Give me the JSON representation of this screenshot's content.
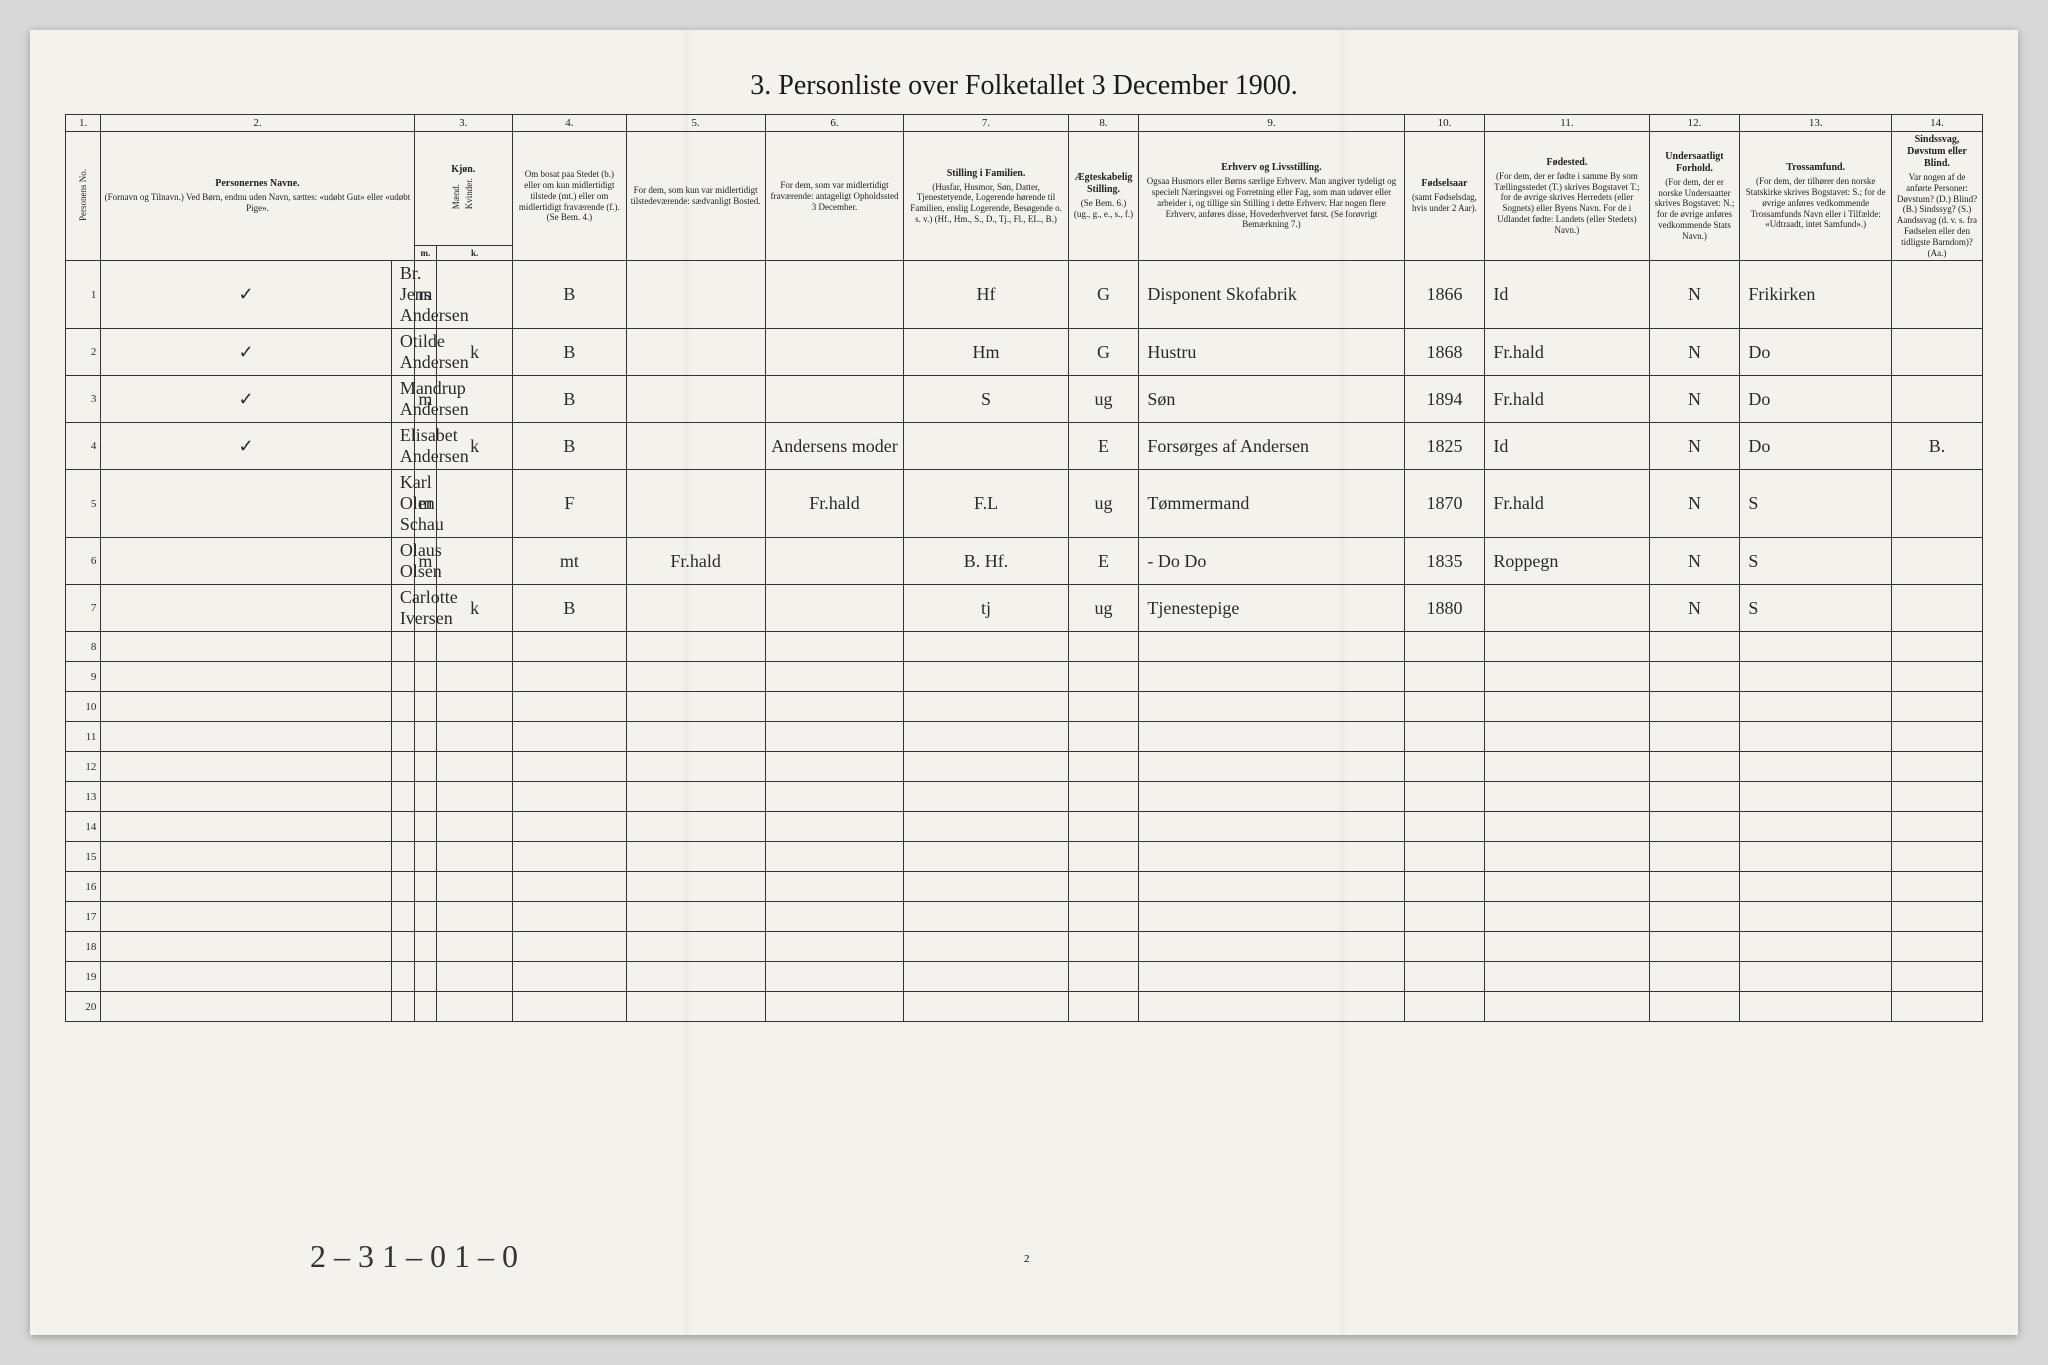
{
  "title": "3. Personliste over Folketallet 3 December 1900.",
  "page_number": "2",
  "footer_tally": "2 – 3   1 – 0   1 – 0",
  "col_numbers": [
    "1.",
    "2.",
    "3.",
    "4.",
    "5.",
    "6.",
    "7.",
    "8.",
    "9.",
    "10.",
    "11.",
    "12.",
    "13.",
    "14."
  ],
  "headers": {
    "c1": "Personens No.",
    "c2_main": "Personernes Navne.",
    "c2_sub": "(Fornavn og Tilnavn.)\nVed Børn, endnu uden Navn, sættes: «udøbt Gut» eller «udøbt Pige».",
    "c3_main": "Kjøn.",
    "c3_sub": "Mænd.",
    "c3_sub2": "Kvinder.",
    "c3_mk_m": "m.",
    "c3_mk_k": "k.",
    "c4": "Om bosat paa Stedet (b.) eller om kun midlertidigt tilstede (mt.) eller om midlertidigt fraværende (f.). (Se Bem. 4.)",
    "c5": "For dem, som kun var midlertidigt tilstedeværende:\nsædvanligt Bosted.",
    "c6": "For dem, som var midlertidigt fraværende:\nantageligt Opholdssted 3 December.",
    "c7_main": "Stilling i Familien.",
    "c7_sub": "(Husfar, Husmor, Søn, Datter, Tjenestetyende, Logerende hørende til Familien, enslig Logerende, Besøgende o. s. v.)\n(Hf., Hm., S., D., Tj., Fl., EL., B.)",
    "c8_main": "Ægteskabelig Stilling.",
    "c8_sub": "(Se Bem. 6.)\n(ug., g., e., s., f.)",
    "c9_main": "Erhverv og Livsstilling.",
    "c9_sub": "Ogsaa Husmors eller Børns særlige Erhverv. Man angiver tydeligt og specielt Næringsvei og Forretning eller Fag, som man udøver eller arbeider i, og tillige sin Stilling i dette Erhverv. Har nogen flere Erhverv, anføres disse, Hovederhvervet først.\n(Se forøvrigt Bemærkning 7.)",
    "c10_main": "Fødselsaar",
    "c10_sub": "(samt Fødselsdag, hvis under 2 Aar).",
    "c11_main": "Fødested.",
    "c11_sub": "(For dem, der er fødte i samme By som Tællingsstedet (T.) skrives Bogstavet T.; for de øvrige skrives Herredets (eller Sognets) eller Byens Navn. For de i Udlandet fødte: Landets (eller Stedets) Navn.)",
    "c12_main": "Undersaatligt Forhold.",
    "c12_sub": "(For dem, der er norske Undersaatter skrives Bogstavet: N.; for de øvrige anføres vedkommende Stats Navn.)",
    "c13_main": "Trossamfund.",
    "c13_sub": "(For dem, der tilhører den norske Statskirke skrives Bogstavet: S.; for de øvrige anføres vedkommende Trossamfunds Navn eller i Tilfælde: «Udtraadt, intet Samfund».)",
    "c14_main": "Sindssvag, Døvstum eller Blind.",
    "c14_sub": "Var nogen af de anførte Personer: Døvstum? (D.) Blind? (B.) Sindssyg? (S.) Aandssvag (d. v. s. fra Fødselen eller den tidligste Barndom)? (Aa.)"
  },
  "col_widths": [
    "28px",
    "230px",
    "18px",
    "18px",
    "60px",
    "90px",
    "110px",
    "110px",
    "130px",
    "56px",
    "210px",
    "64px",
    "130px",
    "72px",
    "120px",
    "72px"
  ],
  "rows": [
    {
      "check": "✓",
      "num": "1",
      "name": "Br. Jens Andersen",
      "m": "m",
      "k": "",
      "b": "B",
      "c5": "",
      "c6": "",
      "c7": "Hf",
      "c8": "G",
      "c9": "Disponent Skofabrik",
      "c10": "1866",
      "c11": "Id",
      "c12": "N",
      "c13": "Frikirken",
      "c14": ""
    },
    {
      "check": "✓",
      "num": "2",
      "name": "Otilde Andersen",
      "m": "",
      "k": "k",
      "b": "B",
      "c5": "",
      "c6": "",
      "c7": "Hm",
      "c8": "G",
      "c9": "Hustru",
      "c10": "1868",
      "c11": "Fr.hald",
      "c12": "N",
      "c13": "Do",
      "c14": ""
    },
    {
      "check": "✓",
      "num": "3",
      "name": "Mandrup Andersen",
      "m": "m",
      "k": "",
      "b": "B",
      "c5": "",
      "c6": "",
      "c7": "S",
      "c8": "ug",
      "c9": "Søn",
      "c10": "1894",
      "c11": "Fr.hald",
      "c12": "N",
      "c13": "Do",
      "c14": ""
    },
    {
      "check": "✓",
      "num": "4",
      "name": "Elisabet Andersen",
      "m": "",
      "k": "k",
      "b": "B",
      "c5": "",
      "c6": "Andersens moder",
      "c7": "",
      "c8": "E",
      "c9": "Forsørges af Andersen",
      "c10": "1825",
      "c11": "Id",
      "c12": "N",
      "c13": "Do",
      "c14": "B."
    },
    {
      "check": "",
      "num": "5",
      "name": "Karl Olen Schau",
      "m": "m",
      "k": "",
      "b": "F",
      "c5": "",
      "c6": "Fr.hald",
      "c7": "F.L",
      "c8": "ug",
      "c9": "Tømmermand",
      "c10": "1870",
      "c11": "Fr.hald",
      "c12": "N",
      "c13": "S",
      "c14": ""
    },
    {
      "check": "",
      "num": "6",
      "name": "Olaus Olsen",
      "m": "m",
      "k": "",
      "b": "mt",
      "c5": "Fr.hald",
      "c6": "",
      "c7": "B. Hf.",
      "c8": "E",
      "c9": "-  Do    Do",
      "c10": "1835",
      "c11": "Roppegn",
      "c12": "N",
      "c13": "S",
      "c14": ""
    },
    {
      "check": "",
      "num": "7",
      "name": "Carlotte Iversen",
      "m": "",
      "k": "k",
      "b": "B",
      "c5": "",
      "c6": "",
      "c7": "tj",
      "c8": "ug",
      "c9": "Tjenestepige",
      "c10": "1880",
      "c11": "",
      "c12": "N",
      "c13": "S",
      "c14": ""
    },
    {
      "check": "",
      "num": "8",
      "name": "",
      "m": "",
      "k": "",
      "b": "",
      "c5": "",
      "c6": "",
      "c7": "",
      "c8": "",
      "c9": "",
      "c10": "",
      "c11": "",
      "c12": "",
      "c13": "",
      "c14": ""
    },
    {
      "check": "",
      "num": "9",
      "name": "",
      "m": "",
      "k": "",
      "b": "",
      "c5": "",
      "c6": "",
      "c7": "",
      "c8": "",
      "c9": "",
      "c10": "",
      "c11": "",
      "c12": "",
      "c13": "",
      "c14": ""
    },
    {
      "check": "",
      "num": "10",
      "name": "",
      "m": "",
      "k": "",
      "b": "",
      "c5": "",
      "c6": "",
      "c7": "",
      "c8": "",
      "c9": "",
      "c10": "",
      "c11": "",
      "c12": "",
      "c13": "",
      "c14": ""
    },
    {
      "check": "",
      "num": "11",
      "name": "",
      "m": "",
      "k": "",
      "b": "",
      "c5": "",
      "c6": "",
      "c7": "",
      "c8": "",
      "c9": "",
      "c10": "",
      "c11": "",
      "c12": "",
      "c13": "",
      "c14": ""
    },
    {
      "check": "",
      "num": "12",
      "name": "",
      "m": "",
      "k": "",
      "b": "",
      "c5": "",
      "c6": "",
      "c7": "",
      "c8": "",
      "c9": "",
      "c10": "",
      "c11": "",
      "c12": "",
      "c13": "",
      "c14": ""
    },
    {
      "check": "",
      "num": "13",
      "name": "",
      "m": "",
      "k": "",
      "b": "",
      "c5": "",
      "c6": "",
      "c7": "",
      "c8": "",
      "c9": "",
      "c10": "",
      "c11": "",
      "c12": "",
      "c13": "",
      "c14": ""
    },
    {
      "check": "",
      "num": "14",
      "name": "",
      "m": "",
      "k": "",
      "b": "",
      "c5": "",
      "c6": "",
      "c7": "",
      "c8": "",
      "c9": "",
      "c10": "",
      "c11": "",
      "c12": "",
      "c13": "",
      "c14": ""
    },
    {
      "check": "",
      "num": "15",
      "name": "",
      "m": "",
      "k": "",
      "b": "",
      "c5": "",
      "c6": "",
      "c7": "",
      "c8": "",
      "c9": "",
      "c10": "",
      "c11": "",
      "c12": "",
      "c13": "",
      "c14": ""
    },
    {
      "check": "",
      "num": "16",
      "name": "",
      "m": "",
      "k": "",
      "b": "",
      "c5": "",
      "c6": "",
      "c7": "",
      "c8": "",
      "c9": "",
      "c10": "",
      "c11": "",
      "c12": "",
      "c13": "",
      "c14": ""
    },
    {
      "check": "",
      "num": "17",
      "name": "",
      "m": "",
      "k": "",
      "b": "",
      "c5": "",
      "c6": "",
      "c7": "",
      "c8": "",
      "c9": "",
      "c10": "",
      "c11": "",
      "c12": "",
      "c13": "",
      "c14": ""
    },
    {
      "check": "",
      "num": "18",
      "name": "",
      "m": "",
      "k": "",
      "b": "",
      "c5": "",
      "c6": "",
      "c7": "",
      "c8": "",
      "c9": "",
      "c10": "",
      "c11": "",
      "c12": "",
      "c13": "",
      "c14": ""
    },
    {
      "check": "",
      "num": "19",
      "name": "",
      "m": "",
      "k": "",
      "b": "",
      "c5": "",
      "c6": "",
      "c7": "",
      "c8": "",
      "c9": "",
      "c10": "",
      "c11": "",
      "c12": "",
      "c13": "",
      "c14": ""
    },
    {
      "check": "",
      "num": "20",
      "name": "",
      "m": "",
      "k": "",
      "b": "",
      "c5": "",
      "c6": "",
      "c7": "",
      "c8": "",
      "c9": "",
      "c10": "",
      "c11": "",
      "c12": "",
      "c13": "",
      "c14": ""
    }
  ]
}
